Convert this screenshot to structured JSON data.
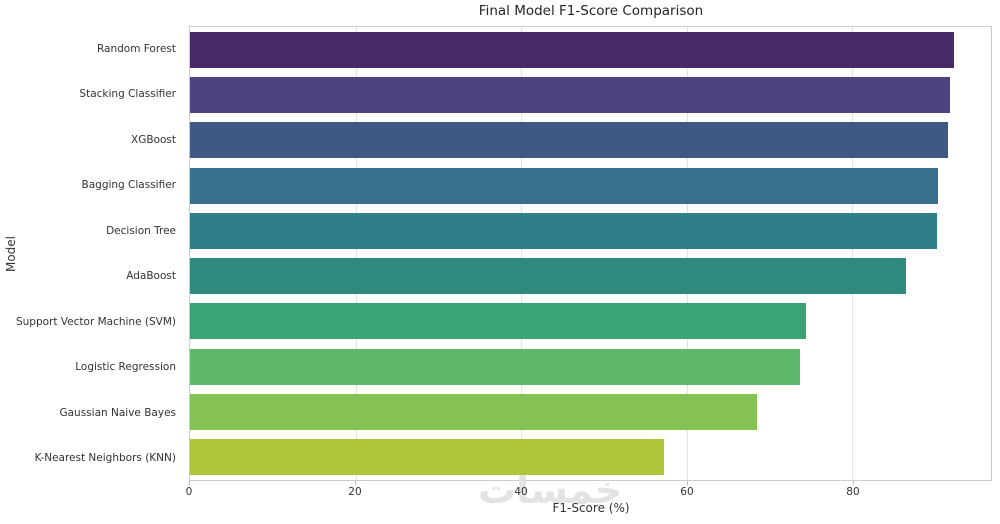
{
  "title": "Final Model F1-Score Comparison",
  "watermark_text": "خمسات",
  "colors": {
    "background": "#ffffff",
    "spine": "#cccccc",
    "grid": "#e2e2e2",
    "title_text": "#262626",
    "tick_text": "#333333",
    "watermark": "#e3e3e3"
  },
  "chart_data": {
    "type": "bar",
    "orientation": "horizontal",
    "title": "Final Model F1-Score Comparison",
    "xlabel": "F1-Score (%)",
    "ylabel": "Model",
    "xlim": [
      0,
      96.75
    ],
    "xticks": [
      0,
      20,
      40,
      60,
      80
    ],
    "grid": "vertical-only",
    "legend": "none",
    "palette": "viridis (muted)",
    "categories": [
      "Random Forest",
      "Stacking Classifier",
      "XGBoost",
      "Bagging Classifier",
      "Decision Tree",
      "AdaBoost",
      "Support Vector Machine (SVM)",
      "Logistic Regression",
      "Gaussian Naive Bayes",
      "K-Nearest Neighbors (KNN)"
    ],
    "values": [
      92.3,
      91.8,
      91.6,
      90.4,
      90.2,
      86.5,
      74.4,
      73.7,
      68.5,
      57.3
    ],
    "bar_colors": [
      "#472a68",
      "#4c4480",
      "#3f5885",
      "#38708c",
      "#2e7f8a",
      "#2e8a7c",
      "#3aa377",
      "#5fb96d",
      "#84c353",
      "#aec637"
    ]
  }
}
